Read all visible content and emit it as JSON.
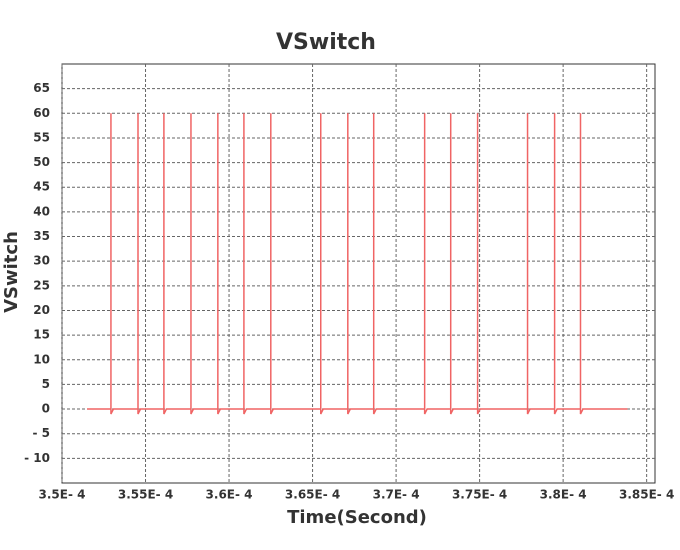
{
  "chart_data": {
    "type": "line",
    "title": "VSwitch",
    "x_label": "Time(Second)",
    "y_label": "VSwitch",
    "color": "#f06464",
    "grid": true,
    "xlim": [
      0.00035,
      0.0003855
    ],
    "ylim": [
      -15,
      70
    ],
    "xticks": [
      {
        "value": 0.00035,
        "label": "3.5E- 4"
      },
      {
        "value": 0.000355,
        "label": "3.55E- 4"
      },
      {
        "value": 0.00036,
        "label": "3.6E- 4"
      },
      {
        "value": 0.000365,
        "label": "3.65E- 4"
      },
      {
        "value": 0.00037,
        "label": "3.7E- 4"
      },
      {
        "value": 0.000375,
        "label": "3.75E- 4"
      },
      {
        "value": 0.00038,
        "label": "3.8E- 4"
      },
      {
        "value": 0.000385,
        "label": "3.85E- 4"
      }
    ],
    "yticks": [
      {
        "value": -10,
        "label": "- 10"
      },
      {
        "value": -5,
        "label": "- 5"
      },
      0,
      5,
      10,
      15,
      20,
      25,
      30,
      35,
      40,
      45,
      50,
      55,
      60,
      65
    ],
    "x": [
      0.0003515,
      0.00035293,
      0.00035293,
      0.00035293,
      0.00035308,
      0.00035455,
      0.00035455,
      0.00035455,
      0.0003547,
      0.0003561,
      0.0003561,
      0.0003561,
      0.00035625,
      0.00035772,
      0.00035772,
      0.00035772,
      0.00035787,
      0.00035933,
      0.00035933,
      0.00035933,
      0.00035948,
      0.00036089,
      0.00036089,
      0.00036089,
      0.00036104,
      0.0003625,
      0.0003625,
      0.0003625,
      0.00036265,
      0.00036549,
      0.00036549,
      0.00036549,
      0.00036564,
      0.00036711,
      0.00036711,
      0.00036711,
      0.00036726,
      0.00036866,
      0.00036866,
      0.00036866,
      0.00036881,
      0.00037171,
      0.00037171,
      0.00037171,
      0.00037186,
      0.00037327,
      0.00037327,
      0.00037327,
      0.00037342,
      0.00037488,
      0.00037488,
      0.00037488,
      0.00037503,
      0.00037787,
      0.00037787,
      0.00037787,
      0.00037802,
      0.00037949,
      0.00037949,
      0.00037949,
      0.00037964,
      0.00038104,
      0.00038104,
      0.00038104,
      0.00038119,
      0.00038385
    ],
    "values": [
      0,
      0,
      60,
      -1,
      0,
      0,
      60,
      -1,
      0,
      0,
      60,
      -1,
      0,
      0,
      60,
      -1,
      0,
      0,
      60,
      -1,
      0,
      0,
      60,
      -1,
      0,
      0,
      60,
      -1,
      0,
      0,
      60,
      -1,
      0,
      0,
      60,
      -1,
      0,
      0,
      60,
      -1,
      0,
      0,
      60,
      -1,
      0,
      0,
      60,
      -1,
      0,
      0,
      60,
      -1,
      0,
      0,
      60,
      -1,
      0,
      0,
      60,
      -1,
      0,
      0,
      60,
      -1,
      0,
      0
    ]
  }
}
